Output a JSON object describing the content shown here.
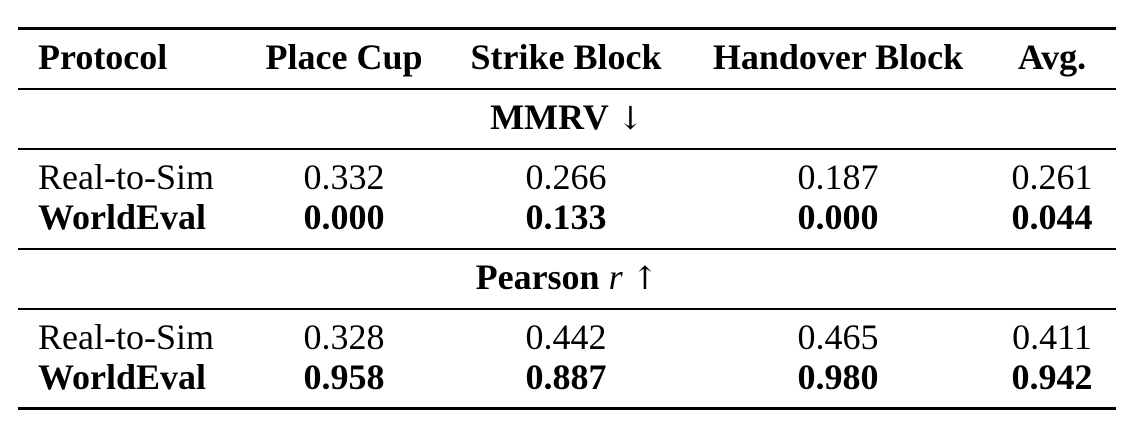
{
  "table": {
    "headers": [
      "Protocol",
      "Place Cup",
      "Strike Block",
      "Handover Block",
      "Avg."
    ],
    "sections": [
      {
        "title": "MMRV",
        "arrow": "↓",
        "rows": [
          {
            "protocol": "Real-to-Sim",
            "values": [
              "0.332",
              "0.266",
              "0.187",
              "0.261"
            ]
          },
          {
            "protocol": "WorldEval",
            "values": [
              "0.000",
              "0.133",
              "0.000",
              "0.044"
            ]
          }
        ]
      },
      {
        "title": "Pearson",
        "symbol": "r",
        "arrow": "↑",
        "rows": [
          {
            "protocol": "Real-to-Sim",
            "values": [
              "0.328",
              "0.442",
              "0.465",
              "0.411"
            ]
          },
          {
            "protocol": "WorldEval",
            "values": [
              "0.958",
              "0.887",
              "0.980",
              "0.942"
            ]
          }
        ]
      }
    ]
  }
}
